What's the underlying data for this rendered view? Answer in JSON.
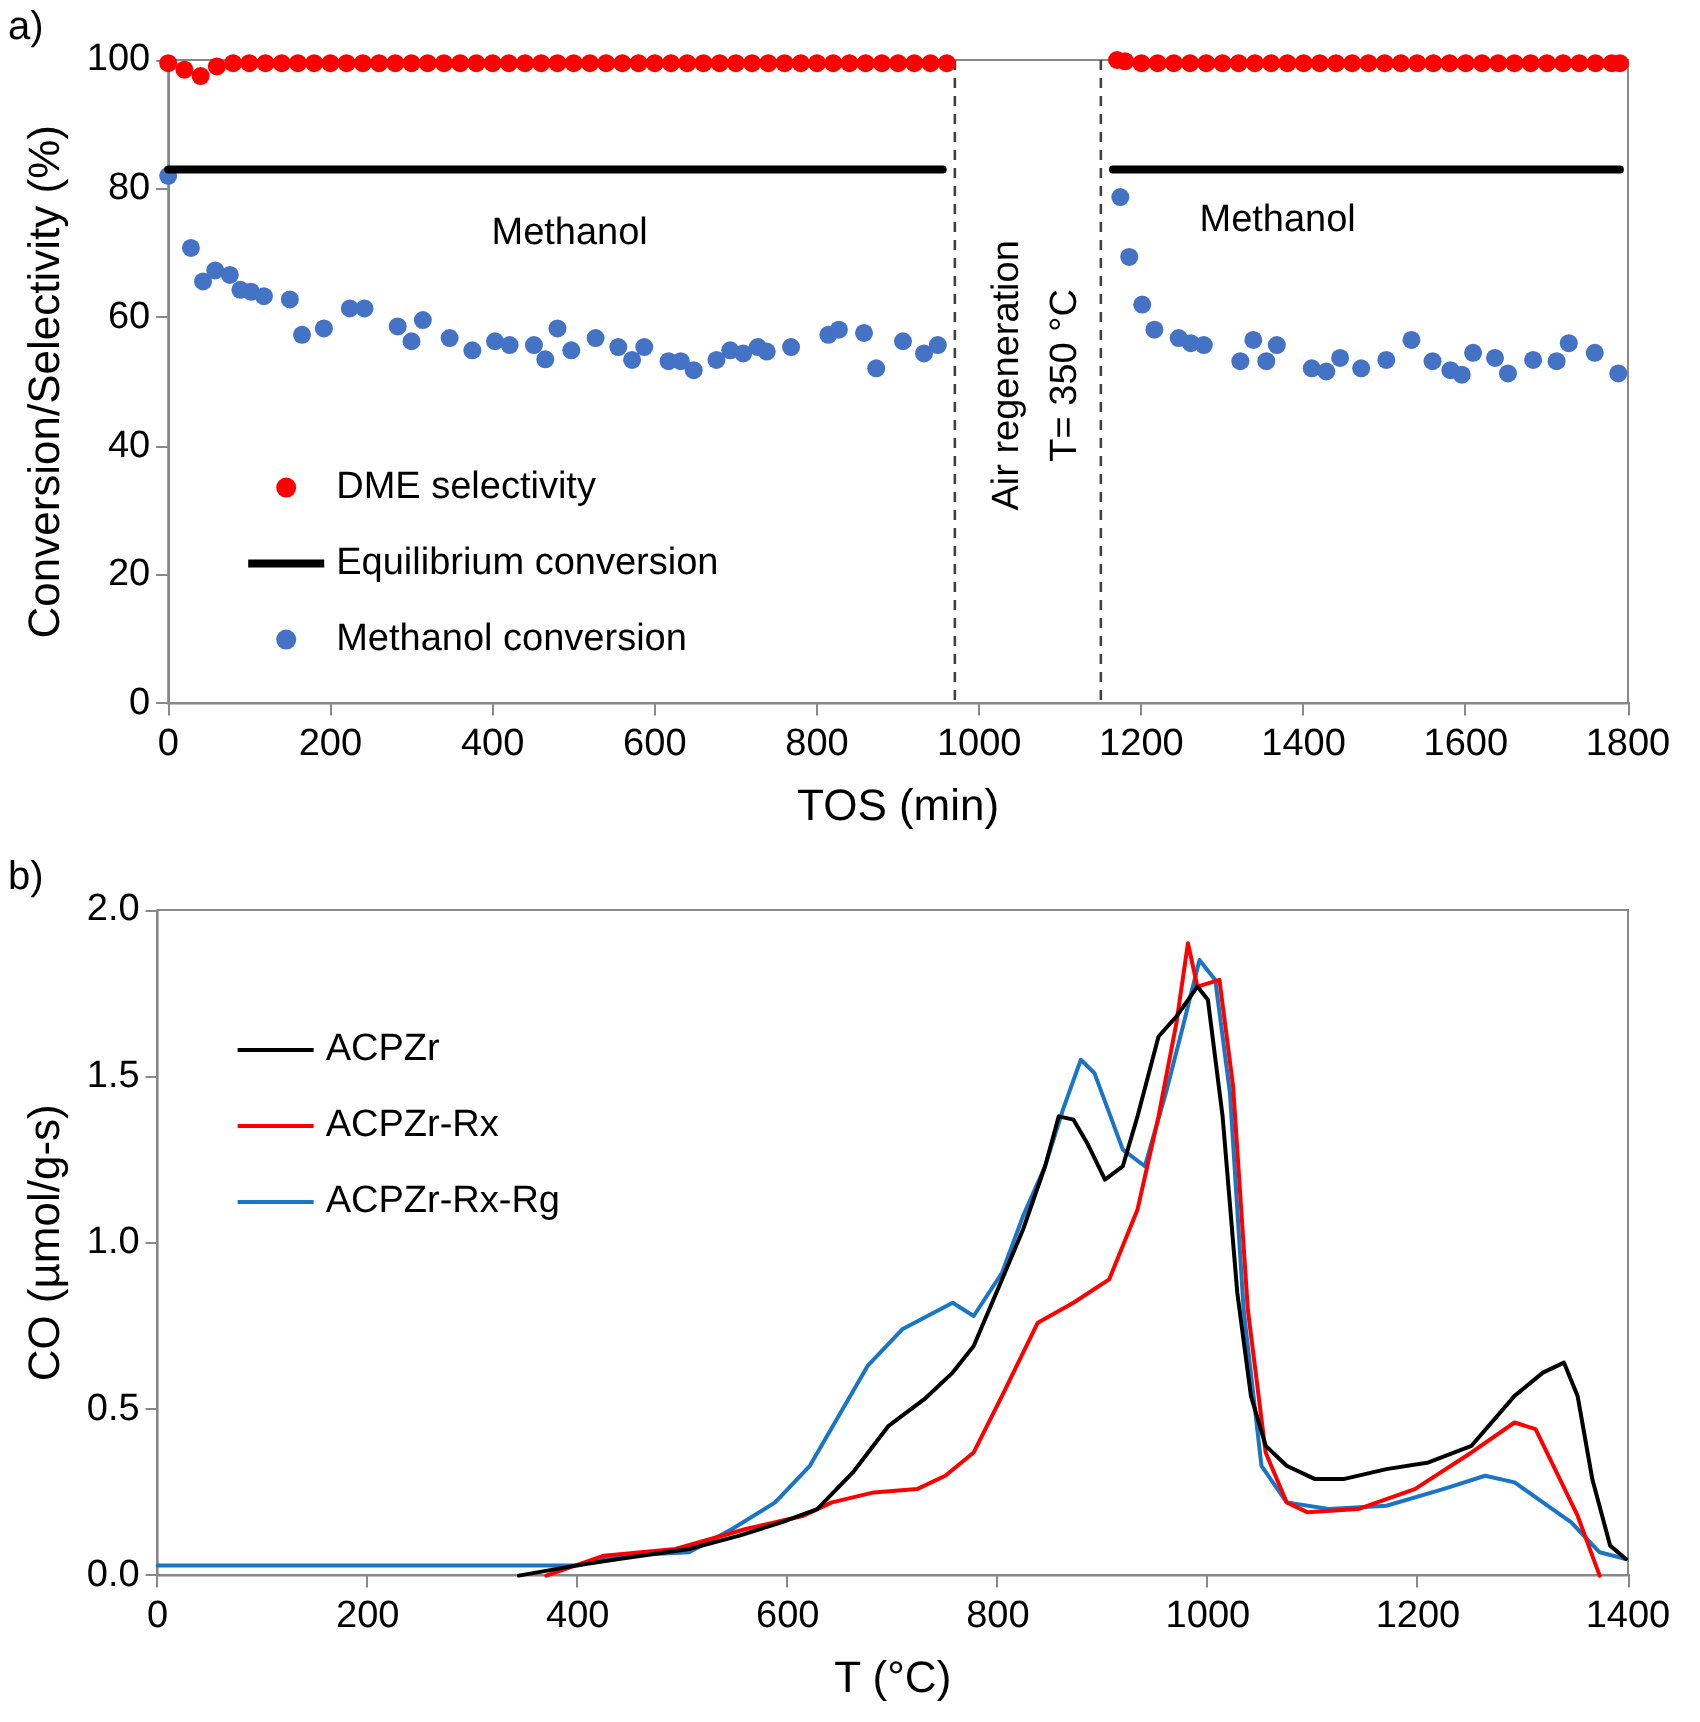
{
  "chart_data": [
    {
      "type": "scatter",
      "title": "a)",
      "xlabel": "TOS (min)",
      "ylabel": "Conversion/Selectivity (%)",
      "xlim": [
        0,
        1800
      ],
      "xticks": [
        0,
        200,
        400,
        600,
        800,
        1000,
        1200,
        1400,
        1600,
        1800
      ],
      "ylim": [
        0,
        100
      ],
      "yticks": [
        0,
        20,
        40,
        60,
        80,
        100
      ],
      "legend": "bottom left",
      "series": [
        {
          "name": "DME selectivity",
          "color": "#ff0000",
          "x": [
            0,
            20,
            40,
            60,
            80,
            100,
            120,
            140,
            160,
            180,
            200,
            220,
            240,
            260,
            280,
            300,
            320,
            340,
            360,
            380,
            400,
            420,
            440,
            460,
            480,
            500,
            520,
            540,
            560,
            580,
            600,
            620,
            640,
            660,
            680,
            700,
            720,
            740,
            760,
            780,
            800,
            820,
            840,
            860,
            880,
            900,
            920,
            940,
            960,
            1170,
            1180,
            1200,
            1220,
            1240,
            1260,
            1280,
            1300,
            1320,
            1340,
            1360,
            1380,
            1400,
            1420,
            1440,
            1460,
            1480,
            1500,
            1520,
            1540,
            1560,
            1580,
            1600,
            1620,
            1640,
            1660,
            1680,
            1700,
            1720,
            1740,
            1760,
            1780,
            1790
          ],
          "values": [
            99.5,
            98.5,
            97.5,
            99,
            99.5,
            99.5,
            99.5,
            99.5,
            99.5,
            99.5,
            99.5,
            99.5,
            99.5,
            99.5,
            99.5,
            99.5,
            99.5,
            99.5,
            99.5,
            99.5,
            99.5,
            99.5,
            99.5,
            99.5,
            99.5,
            99.5,
            99.5,
            99.5,
            99.5,
            99.5,
            99.5,
            99.5,
            99.5,
            99.5,
            99.5,
            99.5,
            99.5,
            99.5,
            99.5,
            99.5,
            99.5,
            99.5,
            99.5,
            99.5,
            99.5,
            99.5,
            99.5,
            99.5,
            99.5,
            100,
            99.8,
            99.5,
            99.5,
            99.5,
            99.5,
            99.5,
            99.5,
            99.5,
            99.5,
            99.5,
            99.5,
            99.5,
            99.5,
            99.5,
            99.5,
            99.5,
            99.5,
            99.5,
            99.5,
            99.5,
            99.5,
            99.5,
            99.5,
            99.5,
            99.5,
            99.5,
            99.5,
            99.5,
            99.5,
            99.5,
            99.5,
            99.5
          ]
        },
        {
          "name": "Equilibrium conversion",
          "type": "line",
          "color": "#000000",
          "x": [
            0,
            955,
            1060,
            1165,
            1790
          ],
          "values": [
            83,
            83,
            null,
            83,
            83
          ]
        },
        {
          "name": "Methanol conversion",
          "color": "#4472c4",
          "x": [
            0,
            28,
            43,
            58,
            76,
            89,
            102,
            118,
            150,
            165,
            192,
            224,
            242,
            283,
            300,
            314,
            347,
            375,
            403,
            421,
            451,
            465,
            480,
            497,
            527,
            555,
            572,
            587,
            617,
            632,
            648,
            676,
            693,
            709,
            727,
            738,
            768,
            814,
            827,
            858,
            873,
            906,
            932,
            949,
            1174,
            1185,
            1201,
            1216,
            1246,
            1261,
            1277,
            1322,
            1338,
            1354,
            1367,
            1410,
            1428,
            1445,
            1471,
            1502,
            1533,
            1559,
            1581,
            1595,
            1609,
            1636,
            1652,
            1683,
            1712,
            1727,
            1759,
            1788
          ],
          "values": [
            82,
            70.8,
            65.6,
            67.3,
            66.6,
            64.3,
            64,
            63.3,
            62.8,
            57.3,
            58.3,
            61.4,
            61.4,
            58.6,
            56.3,
            59.6,
            56.8,
            54.9,
            56.3,
            55.7,
            55.7,
            53.5,
            58.3,
            54.9,
            56.8,
            55.4,
            53.4,
            55.4,
            53.2,
            53.2,
            51.8,
            53.4,
            54.9,
            54.4,
            55.4,
            54.7,
            55.4,
            57.3,
            58.1,
            57.6,
            52.1,
            56.3,
            54.4,
            55.7,
            78.7,
            69.4,
            62,
            58.1,
            56.8,
            56,
            55.7,
            53.2,
            56.5,
            53.2,
            55.7,
            52.1,
            51.6,
            53.7,
            52.1,
            53.4,
            56.5,
            53.2,
            51.8,
            51.1,
            54.5,
            53.7,
            51.3,
            53.4,
            53.2,
            56,
            54.5,
            51.3
          ]
        }
      ],
      "ref_lines": [
        {
          "axis": "x",
          "value": 970,
          "line_style": "dashed"
        },
        {
          "axis": "x",
          "value": 1150,
          "line_style": "dashed"
        }
      ],
      "annotations": [
        "Methanol",
        "Methanol",
        "Air regeneration",
        "T= 350 °C"
      ]
    },
    {
      "type": "line",
      "title": "b)",
      "xlabel": "T (°C)",
      "ylabel": "CO (µmol/g-s)",
      "xlim": [
        0,
        1400
      ],
      "xticks": [
        0,
        200,
        400,
        600,
        800,
        1000,
        1200,
        1400
      ],
      "ylim": [
        0,
        2
      ],
      "yticks": [
        {
          "value": 0,
          "label": "0.0"
        },
        {
          "value": 0.5,
          "label": "0.5"
        },
        {
          "value": 1,
          "label": "1.0"
        },
        {
          "value": 1.5,
          "label": "1.5"
        },
        {
          "value": 2,
          "label": "2.0"
        }
      ],
      "legend": "top left",
      "series": [
        {
          "name": "ACPZr",
          "color": "#000000",
          "x": [
            344,
            398,
            439,
            506,
            554,
            594,
            628,
            662,
            696,
            730,
            757,
            777,
            804,
            824,
            845,
            858,
            872,
            885,
            902,
            919,
            933,
            953,
            970,
            990,
            1000,
            1014,
            1028,
            1041,
            1055,
            1075,
            1102,
            1129,
            1170,
            1210,
            1251,
            1292,
            1319,
            1339,
            1352,
            1366,
            1383,
            1398
          ],
          "values": [
            0,
            0.03,
            0.05,
            0.08,
            0.12,
            0.16,
            0.2,
            0.31,
            0.45,
            0.53,
            0.61,
            0.69,
            0.89,
            1.04,
            1.23,
            1.38,
            1.37,
            1.3,
            1.19,
            1.23,
            1.38,
            1.62,
            1.68,
            1.77,
            1.73,
            1.38,
            0.85,
            0.54,
            0.39,
            0.33,
            0.29,
            0.29,
            0.32,
            0.34,
            0.39,
            0.54,
            0.61,
            0.64,
            0.54,
            0.29,
            0.09,
            0.05
          ]
        },
        {
          "name": "ACPZr-Rx",
          "color": "#ff0000",
          "x": [
            370,
            425,
            493,
            560,
            615,
            642,
            682,
            723,
            750,
            777,
            804,
            838,
            872,
            906,
            933,
            953,
            970,
            981,
            990,
            1011,
            1024,
            1038,
            1055,
            1075,
            1095,
            1143,
            1197,
            1251,
            1292,
            1312,
            1329,
            1352,
            1373
          ],
          "values": [
            0,
            0.06,
            0.08,
            0.14,
            0.18,
            0.22,
            0.25,
            0.26,
            0.3,
            0.37,
            0.54,
            0.76,
            0.82,
            0.89,
            1.1,
            1.38,
            1.66,
            1.9,
            1.77,
            1.79,
            1.47,
            0.8,
            0.37,
            0.22,
            0.19,
            0.2,
            0.26,
            0.37,
            0.46,
            0.44,
            0.33,
            0.18,
            0
          ]
        },
        {
          "name": "ACPZr-Rx-Rg",
          "color": "#1a75c4",
          "x": [
            0,
            100,
            200,
            300,
            400,
            439,
            506,
            547,
            588,
            621,
            676,
            709,
            757,
            777,
            804,
            824,
            845,
            862,
            879,
            892,
            919,
            940,
            960,
            977,
            992,
            1007,
            1021,
            1034,
            1051,
            1075,
            1115,
            1170,
            1224,
            1264,
            1292,
            1319,
            1346,
            1373,
            1398
          ],
          "values": [
            0.03,
            0.03,
            0.03,
            0.03,
            0.03,
            0.06,
            0.07,
            0.14,
            0.22,
            0.33,
            0.63,
            0.74,
            0.82,
            0.78,
            0.91,
            1.08,
            1.23,
            1.4,
            1.55,
            1.51,
            1.28,
            1.23,
            1.45,
            1.66,
            1.85,
            1.79,
            1.45,
            0.8,
            0.33,
            0.22,
            0.2,
            0.21,
            0.26,
            0.3,
            0.28,
            0.22,
            0.16,
            0.07,
            0.05
          ]
        }
      ]
    }
  ]
}
